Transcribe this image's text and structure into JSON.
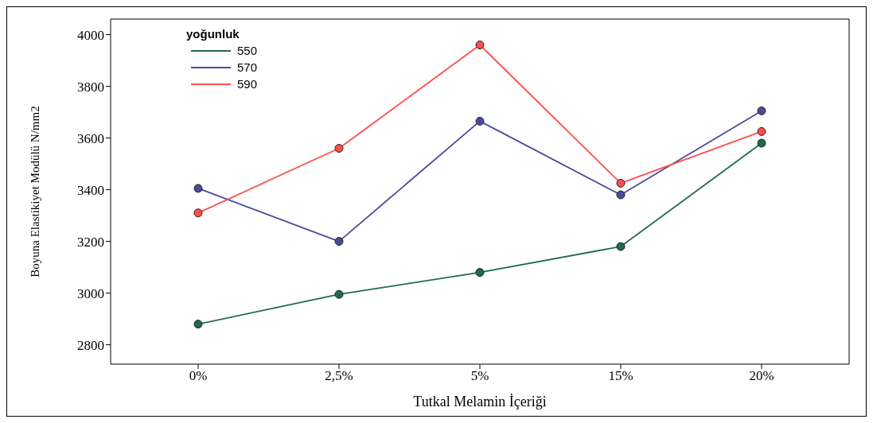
{
  "chart_data": {
    "type": "line",
    "xlabel": "Tutkal Melamin İçeriği",
    "ylabel": "Boyuna Elastikiyet Modülü N/mm2",
    "legend_title": "yoğunluk",
    "categories": [
      "0%",
      "2,5%",
      "5%",
      "15%",
      "20%"
    ],
    "series": [
      {
        "name": "550",
        "color": "#1e6b50",
        "values": [
          2880,
          2995,
          3080,
          3180,
          3580
        ]
      },
      {
        "name": "570",
        "color": "#4a4a9c",
        "values": [
          3405,
          3200,
          3665,
          3380,
          3705
        ]
      },
      {
        "name": "590",
        "color": "#ff4d4d",
        "values": [
          3310,
          3560,
          3960,
          3425,
          3625
        ]
      }
    ],
    "ylim": [
      2725,
      4060
    ],
    "yticks": [
      2800,
      3000,
      3200,
      3400,
      3600,
      3800,
      4000
    ],
    "grid": false,
    "legend": "top left",
    "marker": "circle",
    "line_style": "solid"
  }
}
